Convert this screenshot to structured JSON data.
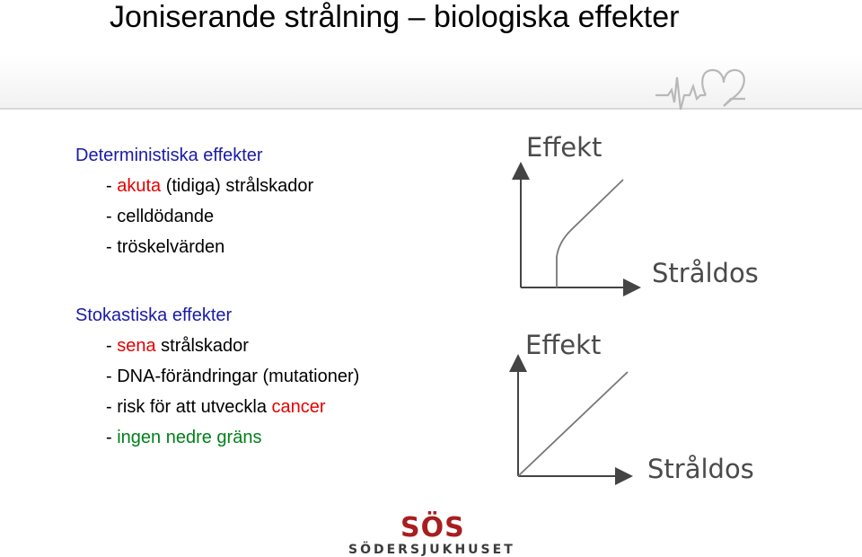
{
  "slide": {
    "title": "Joniserande strålning – biologiska effekter"
  },
  "deterministic": {
    "heading": "Deterministiska effekter",
    "items": [
      {
        "prefix": "- ",
        "highlight": "akuta",
        "highlight_color": "#e60000",
        "rest": " (tidiga) strålskador"
      },
      {
        "prefix": "- ",
        "highlight": "",
        "highlight_color": "",
        "rest": "celldödande"
      },
      {
        "prefix": "- ",
        "highlight": "",
        "highlight_color": "",
        "rest": "tröskelvärden"
      }
    ]
  },
  "stochastic": {
    "heading": "Stokastiska effekter",
    "items": [
      {
        "prefix": "- ",
        "highlight": "sena",
        "highlight_color": "#e60000",
        "rest": " strålskador"
      },
      {
        "prefix": "- ",
        "highlight": "",
        "highlight_color": "",
        "rest": "DNA-förändringar (mutationer)"
      },
      {
        "prefix": "- risk för att utveckla ",
        "highlight": "cancer",
        "highlight_color": "#e60000",
        "rest": ""
      },
      {
        "prefix": "- ",
        "highlight": "ingen nedre gräns",
        "highlight_color": "#00801a",
        "rest": ""
      }
    ]
  },
  "graphs": {
    "threshold": {
      "ylabel": "Effekt",
      "xlabel": "Stråldos"
    },
    "linear": {
      "ylabel": "Effekt",
      "xlabel": "Stråldos"
    }
  },
  "logo": {
    "mark": "SÖS",
    "name": "SÖDERSJUKHUSET"
  },
  "icons": {
    "ecg": "ecg-heart-icon"
  },
  "colors": {
    "heading": "#1a1aa8",
    "red": "#e60000",
    "green": "#00801a",
    "logo": "#a81e1e"
  }
}
